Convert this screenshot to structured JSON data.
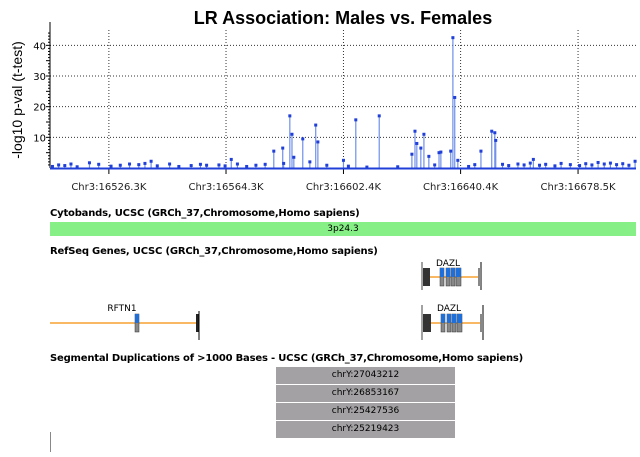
{
  "chart_data": {
    "type": "scatter",
    "title": "LR Association: Males vs. Females",
    "ylabel": "-log10 p-val (t-test)",
    "xlabel": "",
    "xlim": [
      16507.2,
      16697.3
    ],
    "ylim": [
      0,
      45
    ],
    "x_ticks": [
      "Chr3:16526.3K",
      "Chr3:16564.3K",
      "Chr3:16602.4K",
      "Chr3:16640.4K",
      "Chr3:16678.5K"
    ],
    "x_tick_values": [
      16526.3,
      16564.3,
      16602.4,
      16640.4,
      16678.5
    ],
    "y_ticks": [
      10,
      20,
      30,
      40
    ],
    "grid": true,
    "color": "#1f3fd8",
    "stem_color": "#6f8fe8",
    "points": [
      [
        16579.8,
        5.5
      ],
      [
        16582.7,
        6.5
      ],
      [
        16585.0,
        17
      ],
      [
        16585.7,
        11
      ],
      [
        16586.3,
        3.5
      ],
      [
        16589.2,
        9.5
      ],
      [
        16593.4,
        14
      ],
      [
        16594.1,
        8.5
      ],
      [
        16591.5,
        2
      ],
      [
        16606.4,
        15.7
      ],
      [
        16614.0,
        17
      ],
      [
        16624.6,
        4.5
      ],
      [
        16625.6,
        12
      ],
      [
        16626.2,
        8
      ],
      [
        16627.5,
        6.5
      ],
      [
        16628.5,
        11
      ],
      [
        16630.1,
        3.8
      ],
      [
        16633.4,
        5
      ],
      [
        16634.0,
        5.2
      ],
      [
        16637.2,
        5.5
      ],
      [
        16637.9,
        42.5
      ],
      [
        16638.5,
        23
      ],
      [
        16639.5,
        2.5
      ],
      [
        16647.0,
        5.5
      ],
      [
        16650.5,
        12
      ],
      [
        16651.5,
        11.5
      ],
      [
        16651.8,
        9
      ],
      [
        16508,
        0.5
      ],
      [
        16510,
        1
      ],
      [
        16512,
        0.8
      ],
      [
        16514,
        1.3
      ],
      [
        16516,
        0.4
      ],
      [
        16520,
        1.7
      ],
      [
        16523,
        1.2
      ],
      [
        16527,
        0.6
      ],
      [
        16530,
        0.9
      ],
      [
        16533,
        1.3
      ],
      [
        16536,
        1.1
      ],
      [
        16538,
        1.5
      ],
      [
        16540,
        2.2
      ],
      [
        16542,
        0.7
      ],
      [
        16546,
        1.3
      ],
      [
        16549,
        0.5
      ],
      [
        16553,
        0.8
      ],
      [
        16556,
        1.2
      ],
      [
        16558,
        0.9
      ],
      [
        16562,
        1.0
      ],
      [
        16564,
        0.7
      ],
      [
        16566,
        2.8
      ],
      [
        16568,
        1.3
      ],
      [
        16571,
        0.5
      ],
      [
        16574,
        0.9
      ],
      [
        16577,
        1.2
      ],
      [
        16583,
        1.5
      ],
      [
        16597,
        0.9
      ],
      [
        16602.4,
        2.5
      ],
      [
        16604,
        0.6
      ],
      [
        16610,
        0.3
      ],
      [
        16620,
        0.4
      ],
      [
        16632,
        1
      ],
      [
        16643,
        0.5
      ],
      [
        16645,
        1.1
      ],
      [
        16654,
        1.2
      ],
      [
        16656,
        0.8
      ],
      [
        16659,
        1.3
      ],
      [
        16661,
        1.0
      ],
      [
        16663,
        1.6
      ],
      [
        16664,
        2.8
      ],
      [
        16666,
        0.9
      ],
      [
        16668,
        1.2
      ],
      [
        16671,
        0.7
      ],
      [
        16673,
        1.5
      ],
      [
        16676,
        1.1
      ],
      [
        16679,
        0.8
      ],
      [
        16681,
        1.4
      ],
      [
        16683,
        1.0
      ],
      [
        16685,
        1.8
      ],
      [
        16687,
        1.3
      ],
      [
        16689,
        1.6
      ],
      [
        16691,
        1.1
      ],
      [
        16693,
        1.4
      ],
      [
        16695,
        0.9
      ],
      [
        16697,
        2.2
      ]
    ]
  },
  "tracks": {
    "cytobands": {
      "title": "Cytobands, UCSC (GRCh_37,Chromosome,Homo sapiens)",
      "band": "3p24.3",
      "color": "#86f086"
    },
    "refseq": {
      "title": "RefSeq Genes, UCSC (GRCh_37,Chromosome,Homo sapiens)",
      "genes": [
        "DAZL",
        "RFTN1",
        "DAZL"
      ]
    },
    "segdup": {
      "title": "Segmental Duplications of >1000 Bases - UCSC (GRCh_37,Chromosome,Homo sapiens)",
      "items": [
        "chrY:27043212",
        "chrY:26853167",
        "chrY:25427536",
        "chrY:25219423"
      ]
    }
  }
}
